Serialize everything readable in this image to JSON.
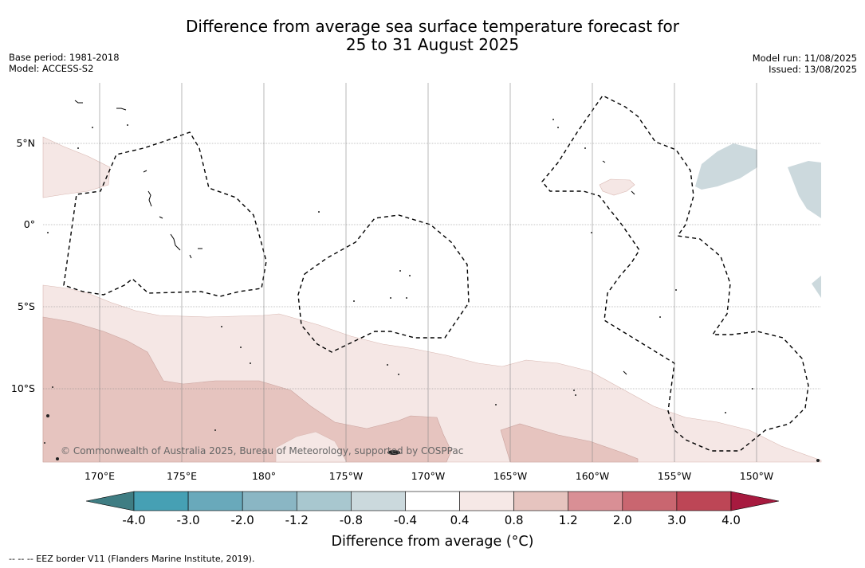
{
  "header": {
    "title_line1": "Difference from average sea surface temperature forecast for",
    "title_line2": "25 to 31 August 2025",
    "base_period": "Base period: 1981-2018",
    "model": "Model: ACCESS-S2",
    "model_run": "Model run: 11/08/2025",
    "issued": "Issued: 13/08/2025"
  },
  "map": {
    "lat_labels": [
      "5°N",
      "0°",
      "5°S",
      "10°S"
    ],
    "lon_labels": [
      "170°E",
      "175°E",
      "180°",
      "175°W",
      "170°W",
      "165°W",
      "160°W",
      "155°W",
      "150°W"
    ],
    "copyright": "© Commonwealth of Australia 2025, Bureau of Meteorology, supported by COSPPac",
    "anomaly_colors": {
      "light_warm": "#f5e7e5",
      "mid_warm": "#e6c4bf",
      "light_cool": "#ccd9dd"
    }
  },
  "colorbar": {
    "ticks": [
      "-4.0",
      "-3.0",
      "-2.0",
      "-1.2",
      "-0.8",
      "-0.4",
      "0.4",
      "0.8",
      "1.2",
      "2.0",
      "3.0",
      "4.0"
    ],
    "colors": [
      "#3f7d83",
      "#46a0b4",
      "#69a9bb",
      "#8ab6c4",
      "#a8c7cf",
      "#cbd9dd",
      "#ffffff",
      "#f6e8e6",
      "#e6c4bf",
      "#d98f95",
      "#c96670",
      "#bd4656",
      "#a71a3f"
    ],
    "label": "Difference from average (°C)"
  },
  "footnote": "--  --  -- EEZ border V11 (Flanders Marine Institute, 2019)."
}
